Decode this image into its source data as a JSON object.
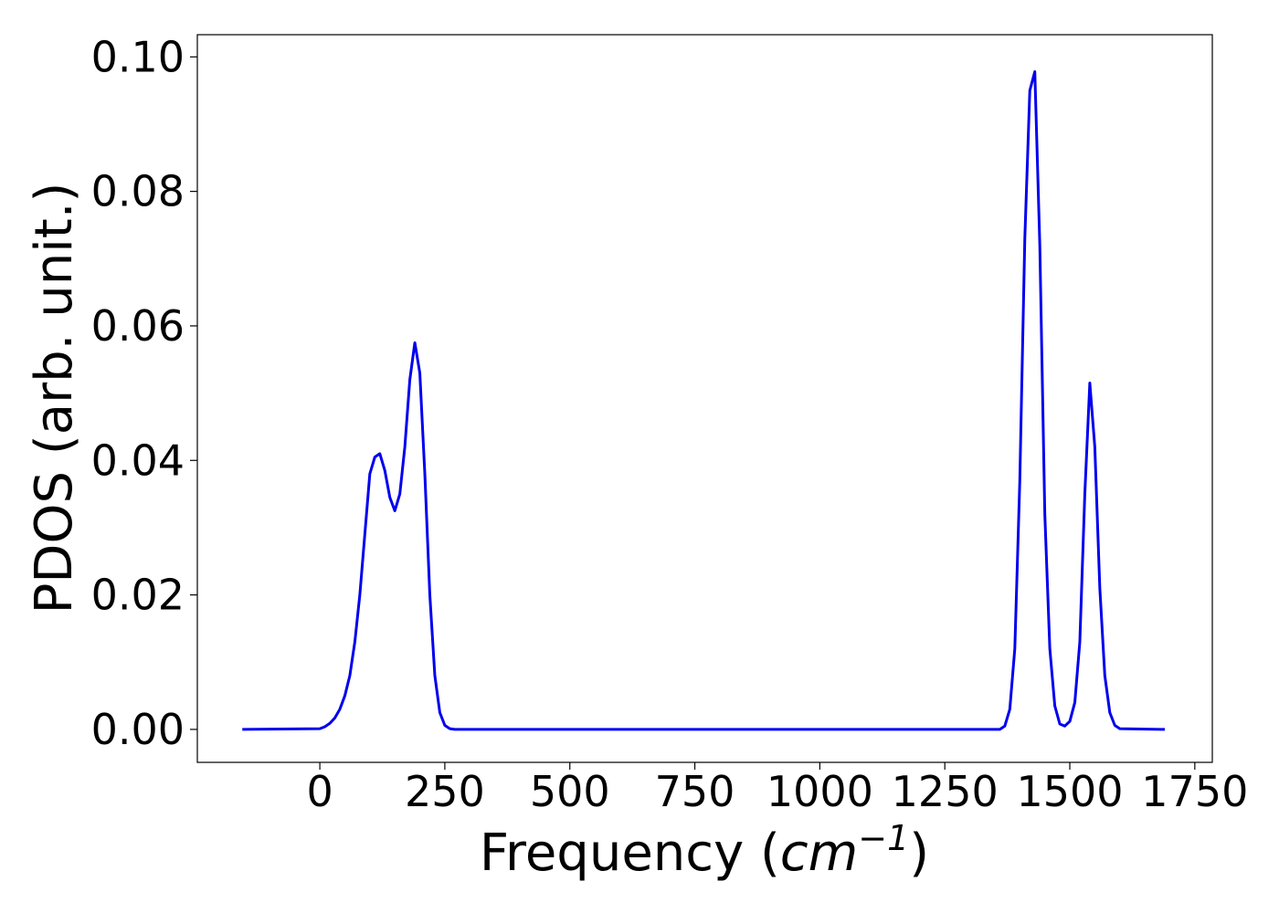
{
  "chart_data": {
    "type": "line",
    "title": "",
    "xlabel": "Frequency (cm⁻¹)",
    "xlabel_parts": {
      "prefix": "Frequency (",
      "unit_base": "cm",
      "unit_exp": "−1",
      "suffix": ")"
    },
    "ylabel": "PDOS (arb. unit.)",
    "xlim": [
      -245,
      1785
    ],
    "ylim": [
      -0.0049,
      0.1033
    ],
    "x_ticks": [
      0,
      250,
      500,
      750,
      1000,
      1250,
      1500,
      1750
    ],
    "x_tick_labels": [
      "0",
      "250",
      "500",
      "750",
      "1000",
      "1250",
      "1500",
      "1750"
    ],
    "y_ticks": [
      0.0,
      0.02,
      0.04,
      0.06,
      0.08,
      0.1
    ],
    "y_tick_labels": [
      "0.00",
      "0.02",
      "0.04",
      "0.06",
      "0.08",
      "0.10"
    ],
    "grid": false,
    "legend": "none",
    "series": [
      {
        "color": "#0000ee",
        "x": [
          -155,
          0,
          10,
          20,
          30,
          40,
          50,
          60,
          70,
          80,
          90,
          100,
          110,
          120,
          130,
          140,
          150,
          160,
          170,
          180,
          190,
          200,
          210,
          220,
          230,
          240,
          250,
          260,
          270,
          300,
          600,
          900,
          1200,
          1360,
          1370,
          1380,
          1390,
          1400,
          1410,
          1420,
          1430,
          1440,
          1450,
          1460,
          1470,
          1480,
          1490,
          1500,
          1510,
          1520,
          1530,
          1540,
          1550,
          1560,
          1570,
          1580,
          1590,
          1600,
          1690
        ],
        "y": [
          0.0,
          0.0001,
          0.0004,
          0.0009,
          0.0017,
          0.003,
          0.005,
          0.008,
          0.013,
          0.02,
          0.029,
          0.038,
          0.0405,
          0.041,
          0.0385,
          0.0345,
          0.0325,
          0.035,
          0.042,
          0.052,
          0.0575,
          0.053,
          0.038,
          0.02,
          0.008,
          0.0025,
          0.0006,
          0.0001,
          0.0,
          0.0,
          0.0,
          0.0,
          0.0,
          0.0,
          0.0005,
          0.003,
          0.012,
          0.037,
          0.073,
          0.095,
          0.0978,
          0.072,
          0.032,
          0.012,
          0.0035,
          0.0008,
          0.0005,
          0.0012,
          0.004,
          0.013,
          0.035,
          0.0515,
          0.042,
          0.021,
          0.008,
          0.0025,
          0.0006,
          0.0001,
          0.0
        ]
      }
    ]
  }
}
